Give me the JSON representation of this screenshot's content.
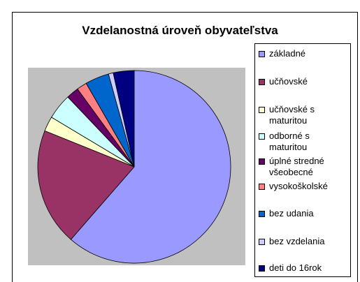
{
  "chart_data": {
    "type": "pie",
    "title": "Vzdelanostná úroveň obyvateľstva",
    "categories": [
      "základné",
      "učňovské",
      "učňovské s maturitou",
      "odborné s maturitou",
      "úplné stredné všeobecné",
      "vysokoškolské",
      "bez udania",
      "bez vzdelania",
      "deti do 16rok"
    ],
    "values": [
      61.4,
      19.7,
      2.5,
      4.3,
      2.1,
      1.7,
      4.0,
      0.8,
      3.5
    ],
    "colors": [
      "#9999ff",
      "#993366",
      "#ffffcc",
      "#ccffff",
      "#660066",
      "#ff8080",
      "#0066cc",
      "#ccccff",
      "#000080"
    ]
  }
}
